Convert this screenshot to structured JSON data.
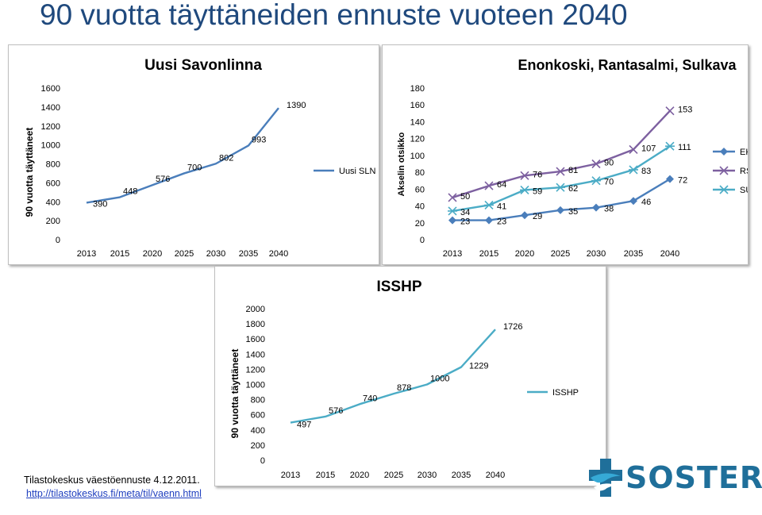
{
  "page_title": "90 vuotta täyttäneiden ennuste vuoteen 2040",
  "source": {
    "line1": "Tilastokeskus väestöennuste 4.12.2011.",
    "line2": "http://tilastokeskus.fi/meta/til/vaenn.html"
  },
  "logo": {
    "text": "SOSTERI",
    "colors": [
      "#1f6f9a",
      "#36a9d6"
    ]
  },
  "chart_data": [
    {
      "type": "line",
      "title": "Uusi Savonlinna",
      "ylabel": "90 vuotta täyttäneet",
      "xlabel": "",
      "categories": [
        "2013",
        "2015",
        "2020",
        "2025",
        "2030",
        "2035",
        "2040"
      ],
      "yticks": [
        "0",
        "200",
        "400",
        "600",
        "800",
        "1000",
        "1200",
        "1400",
        "1600"
      ],
      "ylim": [
        0,
        1600
      ],
      "legend_position": "right",
      "series": [
        {
          "name": "Uusi SLN",
          "color": "#4a7ebb",
          "values": [
            390,
            448,
            576,
            700,
            802,
            993,
            1390
          ],
          "labels": [
            "390",
            "448",
            "576",
            "700",
            "802",
            "993",
            "1390"
          ]
        }
      ]
    },
    {
      "type": "line",
      "title": "Enonkoski, Rantasalmi, Sulkava",
      "ylabel": "Akselin otsikko",
      "xlabel": "",
      "categories": [
        "2013",
        "2015",
        "2020",
        "2025",
        "2030",
        "2035",
        "2040"
      ],
      "yticks": [
        "0",
        "20",
        "40",
        "60",
        "80",
        "100",
        "120",
        "140",
        "160",
        "180"
      ],
      "ylim": [
        0,
        180
      ],
      "legend_position": "right",
      "series": [
        {
          "name": "EK",
          "color": "#4a7ebb",
          "marker": "diamond",
          "values": [
            23,
            23,
            29,
            35,
            38,
            46,
            72
          ],
          "labels": [
            "23",
            "23",
            "29",
            "35",
            "38",
            "46",
            "72"
          ]
        },
        {
          "name": "RS",
          "color": "#7d60a0",
          "marker": "x",
          "values": [
            50,
            64,
            76,
            81,
            90,
            107,
            153
          ],
          "labels": [
            "50",
            "64",
            "76",
            "81",
            "90",
            "107",
            "153"
          ]
        },
        {
          "name": "SU",
          "color": "#4bacc6",
          "marker": "star",
          "values": [
            34,
            41,
            59,
            62,
            70,
            83,
            111
          ],
          "labels": [
            "34",
            "41",
            "59",
            "62",
            "70",
            "83",
            "111"
          ]
        }
      ]
    },
    {
      "type": "line",
      "title": "ISSHP",
      "ylabel": "90 vuotta täyttäneet",
      "xlabel": "",
      "categories": [
        "2013",
        "2015",
        "2020",
        "2025",
        "2030",
        "2035",
        "2040"
      ],
      "yticks": [
        "0",
        "200",
        "400",
        "600",
        "800",
        "1000",
        "1200",
        "1400",
        "1600",
        "1800",
        "2000"
      ],
      "ylim": [
        0,
        2000
      ],
      "legend_position": "right",
      "series": [
        {
          "name": "ISSHP",
          "color": "#4bacc6",
          "values": [
            497,
            576,
            740,
            878,
            1000,
            1229,
            1726
          ],
          "labels": [
            "497",
            "576",
            "740",
            "878",
            "1000",
            "1229",
            "1726"
          ]
        }
      ]
    }
  ]
}
